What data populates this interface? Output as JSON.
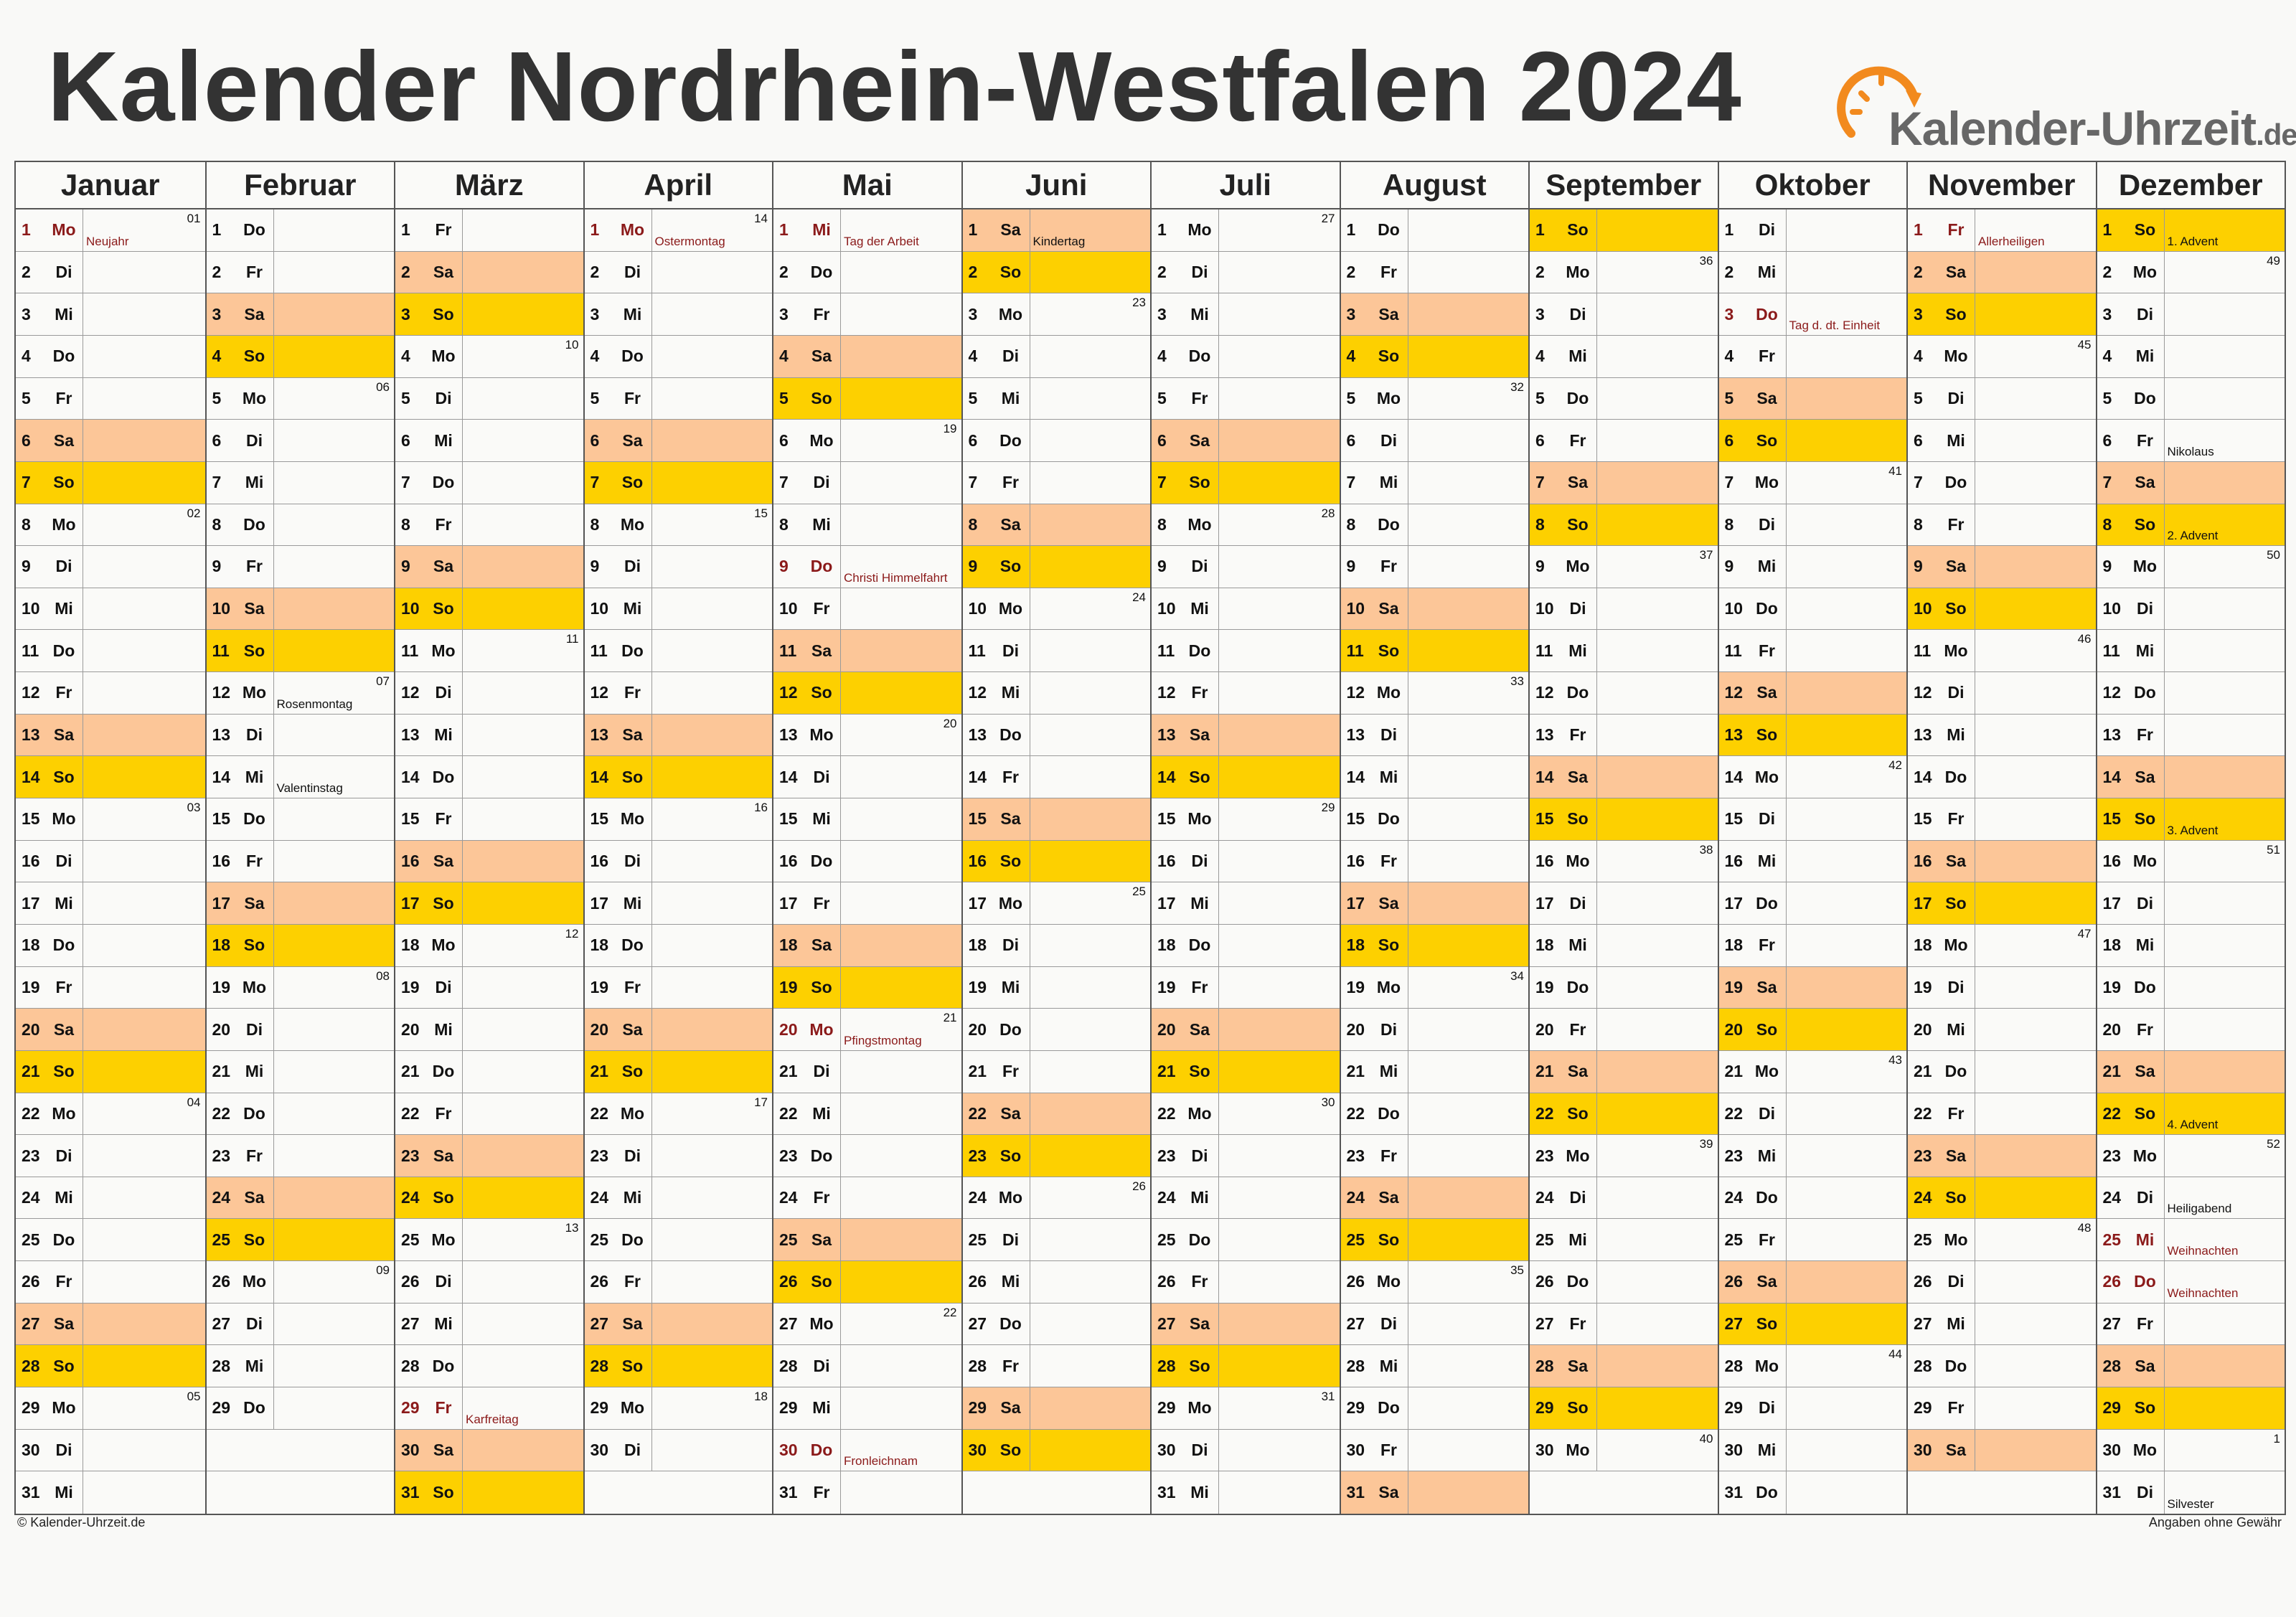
{
  "title": "Kalender Nordrhein-Westfalen 2024",
  "logo": {
    "name": "Kalender-Uhrzeit",
    "tld": ".de",
    "colors": {
      "arc": "#f28a1e",
      "text": "#676767"
    }
  },
  "colors": {
    "saturday": "#fcc698",
    "sunday": "#fdd000",
    "holiday_text": "#8b1a1a"
  },
  "footer": {
    "left": "© Kalender-Uhrzeit.de",
    "right": "Angaben ohne Gewähr"
  },
  "months": [
    {
      "name": "Januar",
      "days": 31,
      "start": 1,
      "weeks": {
        "1": "01",
        "8": "02",
        "15": "03",
        "22": "04",
        "29": "05"
      },
      "holidays": {
        "1": "Neujahr"
      },
      "notes": {}
    },
    {
      "name": "Februar",
      "days": 29,
      "start": 4,
      "weeks": {
        "5": "06",
        "12": "07",
        "19": "08",
        "26": "09"
      },
      "holidays": {},
      "notes": {
        "12": "Rosenmontag",
        "14": "Valentinstag"
      }
    },
    {
      "name": "März",
      "days": 31,
      "start": 5,
      "weeks": {
        "4": "10",
        "11": "11",
        "18": "12",
        "25": "13"
      },
      "holidays": {
        "29": "Karfreitag"
      },
      "notes": {}
    },
    {
      "name": "April",
      "days": 30,
      "start": 1,
      "weeks": {
        "1": "14",
        "8": "15",
        "15": "16",
        "22": "17",
        "29": "18"
      },
      "holidays": {
        "1": "Ostermontag"
      },
      "notes": {}
    },
    {
      "name": "Mai",
      "days": 31,
      "start": 3,
      "weeks": {
        "6": "19",
        "13": "20",
        "20": "21",
        "27": "22"
      },
      "holidays": {
        "1": "Tag der Arbeit",
        "9": "Christi Himmelfahrt",
        "20": "Pfingstmontag",
        "30": "Fronleichnam"
      },
      "notes": {}
    },
    {
      "name": "Juni",
      "days": 30,
      "start": 6,
      "weeks": {
        "3": "23",
        "10": "24",
        "17": "25",
        "24": "26"
      },
      "holidays": {},
      "notes": {
        "1": "Kindertag"
      }
    },
    {
      "name": "Juli",
      "days": 31,
      "start": 1,
      "weeks": {
        "1": "27",
        "8": "28",
        "15": "29",
        "22": "30",
        "29": "31"
      },
      "holidays": {},
      "notes": {}
    },
    {
      "name": "August",
      "days": 31,
      "start": 4,
      "weeks": {
        "5": "32",
        "12": "33",
        "19": "34",
        "26": "35"
      },
      "holidays": {},
      "notes": {}
    },
    {
      "name": "September",
      "days": 30,
      "start": 0,
      "weeks": {
        "2": "36",
        "9": "37",
        "16": "38",
        "23": "39",
        "30": "40"
      },
      "holidays": {},
      "notes": {}
    },
    {
      "name": "Oktober",
      "days": 31,
      "start": 2,
      "weeks": {
        "7": "41",
        "14": "42",
        "21": "43",
        "28": "44"
      },
      "holidays": {
        "3": "Tag d. dt. Einheit"
      },
      "notes": {}
    },
    {
      "name": "November",
      "days": 30,
      "start": 5,
      "weeks": {
        "4": "45",
        "11": "46",
        "18": "47",
        "25": "48"
      },
      "holidays": {
        "1": "Allerheiligen"
      },
      "notes": {}
    },
    {
      "name": "Dezember",
      "days": 31,
      "start": 0,
      "weeks": {
        "2": "49",
        "9": "50",
        "16": "51",
        "23": "52",
        "30": "1"
      },
      "holidays": {
        "25": "Weihnachten",
        "26": "Weihnachten"
      },
      "notes": {
        "1": "1. Advent",
        "6": "Nikolaus",
        "8": "2. Advent",
        "15": "3. Advent",
        "22": "4. Advent",
        "24": "Heiligabend",
        "31": "Silvester"
      }
    }
  ],
  "weekday_abbr": [
    "So",
    "Mo",
    "Di",
    "Mi",
    "Do",
    "Fr",
    "Sa"
  ]
}
